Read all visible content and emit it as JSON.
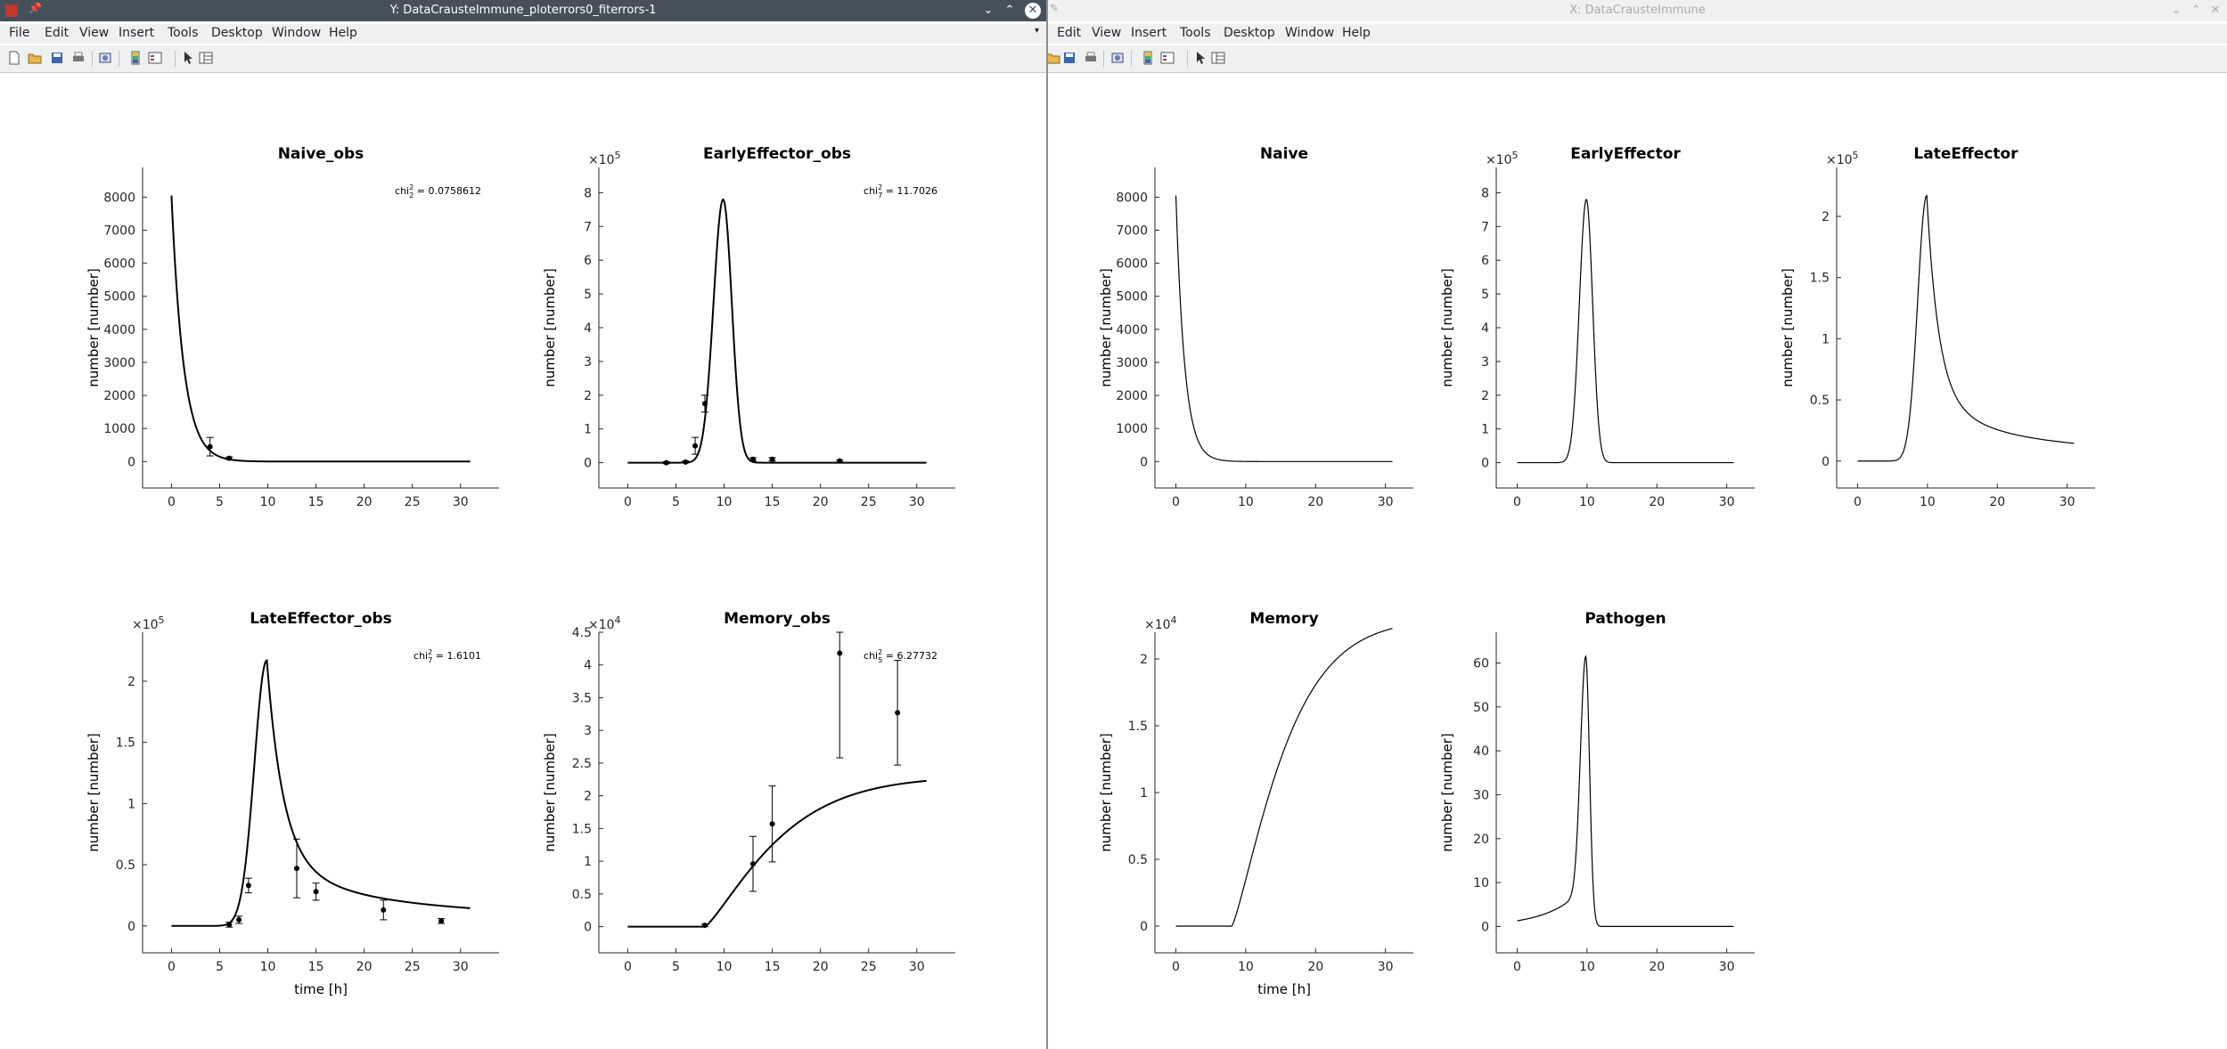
{
  "left_window": {
    "title": "Y: DataCrausteImmune_ploterrors0_fiterrors-1",
    "menu": [
      "File",
      "Edit",
      "View",
      "Insert",
      "Tools",
      "Desktop",
      "Window",
      "Help"
    ],
    "toolbar_icons": [
      "new-figure-icon",
      "open-icon",
      "save-icon",
      "print-icon",
      "print-preview-icon",
      "colorbar-icon",
      "legend-icon",
      "pointer-icon",
      "property-editor-icon"
    ]
  },
  "right_window": {
    "title": "X: DataCrausteImmune",
    "menu": [
      "Edit",
      "View",
      "Insert",
      "Tools",
      "Desktop",
      "Window",
      "Help"
    ],
    "toolbar_icons": [
      "open-icon",
      "save-icon",
      "print-icon",
      "print-preview-icon",
      "colorbar-icon",
      "legend-icon",
      "pointer-icon",
      "property-editor-icon"
    ]
  },
  "chart_data": [
    {
      "panel": "left-1",
      "type": "line",
      "title": "Naive_obs",
      "ylabel": "number [number]",
      "xlabel": "",
      "xlim": [
        -3,
        34
      ],
      "ylim": [
        -800,
        8900
      ],
      "exponent": "",
      "xticks": [
        0,
        5,
        10,
        15,
        20,
        25,
        30
      ],
      "yticks": [
        0,
        1000,
        2000,
        3000,
        4000,
        5000,
        6000,
        7000,
        8000
      ],
      "yticklabels": [
        "0",
        "1000",
        "2000",
        "3000",
        "4000",
        "5000",
        "6000",
        "7000",
        "8000"
      ],
      "curve": {
        "t0": 0,
        "y0": 8050,
        "model": "naive"
      },
      "annotation": {
        "prefix": "chi",
        "sup": "2",
        "sub": "2",
        "value": " = 0.0758612"
      },
      "points": [
        {
          "x": 4,
          "y": 450,
          "err": 280
        },
        {
          "x": 6,
          "y": 100,
          "err": 40
        }
      ]
    },
    {
      "panel": "left-2",
      "type": "line",
      "title": "EarlyEffector_obs",
      "ylabel": "number [number]",
      "xlabel": "",
      "xlim": [
        -3,
        34
      ],
      "ylim": [
        -0.75,
        8.75
      ],
      "exponent": "5",
      "xticks": [
        0,
        5,
        10,
        15,
        20,
        25,
        30
      ],
      "yticks": [
        0,
        1,
        2,
        3,
        4,
        5,
        6,
        7,
        8
      ],
      "yticklabels": [
        "0",
        "1",
        "2",
        "3",
        "4",
        "5",
        "6",
        "7",
        "8"
      ],
      "curve": {
        "peak_t": 9.9,
        "peak_y": 7.8,
        "model": "early"
      },
      "annotation": {
        "prefix": "chi",
        "sup": "2",
        "sub": "7",
        "value": " = 11.7026"
      },
      "points": [
        {
          "x": 4,
          "y": 0.0,
          "err": 0.03
        },
        {
          "x": 6,
          "y": 0.02,
          "err": 0.03
        },
        {
          "x": 7,
          "y": 0.5,
          "err": 0.25
        },
        {
          "x": 8,
          "y": 1.75,
          "err": 0.25
        },
        {
          "x": 13,
          "y": 0.1,
          "err": 0.05
        },
        {
          "x": 15,
          "y": 0.1,
          "err": 0.05
        },
        {
          "x": 22,
          "y": 0.05,
          "err": 0.03
        }
      ]
    },
    {
      "panel": "left-3",
      "type": "line",
      "title": "LateEffector_obs",
      "ylabel": "number [number]",
      "xlabel": "time [h]",
      "xlim": [
        -3,
        34
      ],
      "ylim": [
        -0.22,
        2.4
      ],
      "exponent": "5",
      "xticks": [
        0,
        5,
        10,
        15,
        20,
        25,
        30
      ],
      "yticks": [
        0,
        0.5,
        1,
        1.5,
        2
      ],
      "yticklabels": [
        "0",
        "0.5",
        "1",
        "1.5",
        "2"
      ],
      "curve": {
        "peak_t": 9.9,
        "peak_y": 2.17,
        "model": "late"
      },
      "annotation": {
        "prefix": "chi",
        "sup": "2",
        "sub": "7",
        "value": " = 1.6101"
      },
      "points": [
        {
          "x": 6,
          "y": 0.01,
          "err": 0.02
        },
        {
          "x": 7,
          "y": 0.05,
          "err": 0.03
        },
        {
          "x": 8,
          "y": 0.33,
          "err": 0.06
        },
        {
          "x": 13,
          "y": 0.47,
          "err": 0.24
        },
        {
          "x": 15,
          "y": 0.28,
          "err": 0.07
        },
        {
          "x": 22,
          "y": 0.13,
          "err": 0.08
        },
        {
          "x": 28,
          "y": 0.04,
          "err": 0.02
        }
      ]
    },
    {
      "panel": "left-4",
      "type": "line",
      "title": "Memory_obs",
      "ylabel": "number [number]",
      "xlabel": "",
      "xlim": [
        -3,
        34
      ],
      "ylim": [
        -0.4,
        4.5
      ],
      "exponent": "4",
      "xticks": [
        0,
        5,
        10,
        15,
        20,
        25,
        30
      ],
      "yticks": [
        0,
        0.5,
        1,
        1.5,
        2,
        2.5,
        3,
        3.5,
        4,
        4.5
      ],
      "yticklabels": [
        "0",
        "0.5",
        "1",
        "1.5",
        "2",
        "2.5",
        "3",
        "3.5",
        "4",
        "4.5"
      ],
      "curve": {
        "model": "memory"
      },
      "annotation": {
        "prefix": "chi",
        "sup": "2",
        "sub": "5",
        "value": " = 6.27732"
      },
      "points": [
        {
          "x": 8,
          "y": 0.02,
          "err": 0.02
        },
        {
          "x": 13,
          "y": 0.96,
          "err": 0.42
        },
        {
          "x": 15,
          "y": 1.57,
          "err": 0.58
        },
        {
          "x": 22,
          "y": 4.18,
          "err": 1.6
        },
        {
          "x": 28,
          "y": 3.27,
          "err": 0.8
        }
      ]
    },
    {
      "panel": "right-1",
      "type": "line",
      "title": "Naive",
      "ylabel": "number [number]",
      "xlabel": "",
      "xlim": [
        -3,
        34
      ],
      "ylim": [
        -800,
        8900
      ],
      "exponent": "",
      "xticks": [
        0,
        10,
        20,
        30
      ],
      "yticks": [
        0,
        1000,
        2000,
        3000,
        4000,
        5000,
        6000,
        7000,
        8000
      ],
      "yticklabels": [
        "0",
        "1000",
        "2000",
        "3000",
        "4000",
        "5000",
        "6000",
        "7000",
        "8000"
      ],
      "curve": {
        "t0": 0,
        "y0": 8050,
        "model": "naive"
      }
    },
    {
      "panel": "right-2",
      "type": "line",
      "title": "EarlyEffector",
      "ylabel": "number [number]",
      "xlabel": "",
      "xlim": [
        -3,
        34
      ],
      "ylim": [
        -0.75,
        8.75
      ],
      "exponent": "5",
      "xticks": [
        0,
        10,
        20,
        30
      ],
      "yticks": [
        0,
        1,
        2,
        3,
        4,
        5,
        6,
        7,
        8
      ],
      "yticklabels": [
        "0",
        "1",
        "2",
        "3",
        "4",
        "5",
        "6",
        "7",
        "8"
      ],
      "curve": {
        "peak_t": 9.9,
        "peak_y": 7.8,
        "model": "early"
      }
    },
    {
      "panel": "right-3",
      "type": "line",
      "title": "LateEffector",
      "ylabel": "number [number]",
      "xlabel": "",
      "xlim": [
        -3,
        34
      ],
      "ylim": [
        -0.22,
        2.4
      ],
      "exponent": "5",
      "xticks": [
        0,
        10,
        20,
        30
      ],
      "yticks": [
        0,
        0.5,
        1,
        1.5,
        2
      ],
      "yticklabels": [
        "0",
        "0.5",
        "1",
        "1.5",
        "2"
      ],
      "curve": {
        "peak_t": 9.9,
        "peak_y": 2.17,
        "model": "late"
      }
    },
    {
      "panel": "right-4",
      "type": "line",
      "title": "Memory",
      "ylabel": "number [number]",
      "xlabel": "time [h]",
      "xlim": [
        -3,
        34
      ],
      "ylim": [
        -0.2,
        2.2
      ],
      "exponent": "4",
      "xticks": [
        0,
        10,
        20,
        30
      ],
      "yticks": [
        0,
        0.5,
        1,
        1.5,
        2
      ],
      "yticklabels": [
        "0",
        "0.5",
        "1",
        "1.5",
        "2"
      ],
      "curve": {
        "model": "memory"
      }
    },
    {
      "panel": "right-5",
      "type": "line",
      "title": "Pathogen",
      "ylabel": "number [number]",
      "xlabel": "",
      "xlim": [
        -3,
        34
      ],
      "ylim": [
        -6,
        67
      ],
      "exponent": "",
      "xticks": [
        0,
        10,
        20,
        30
      ],
      "yticks": [
        0,
        10,
        20,
        30,
        40,
        50,
        60
      ],
      "yticklabels": [
        "0",
        "10",
        "20",
        "30",
        "40",
        "50",
        "60"
      ],
      "curve": {
        "peak_t": 9.8,
        "peak_y": 61.5,
        "model": "pathogen"
      }
    }
  ]
}
